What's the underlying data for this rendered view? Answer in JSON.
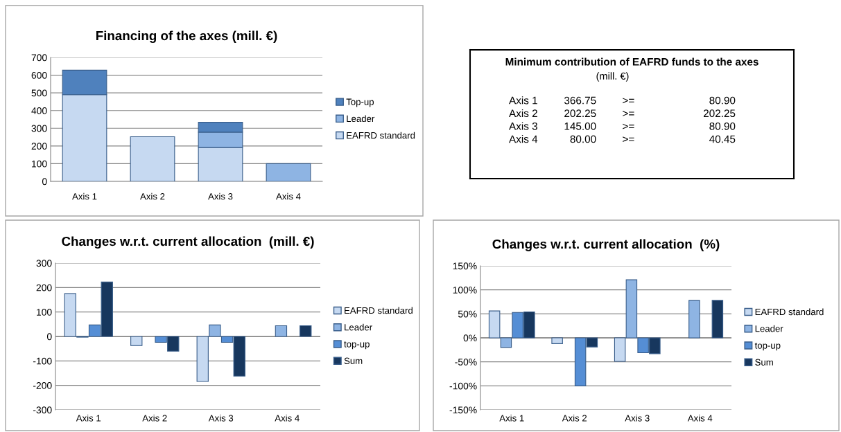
{
  "chart_data": [
    {
      "type": "bar",
      "title": "Financing of the axes (mill. €)",
      "categories": [
        "Axis 1",
        "Axis 2",
        "Axis 3",
        "Axis 4"
      ],
      "stacked": true,
      "ylim": [
        0,
        700
      ],
      "yticks": [
        0,
        100,
        200,
        300,
        400,
        500,
        600,
        700
      ],
      "grid": "y",
      "legend": "right",
      "series": [
        {
          "name": "EAFRD standard",
          "color": "#c6d9f1",
          "values": [
            490,
            252,
            192,
            null
          ]
        },
        {
          "name": "Leader",
          "color": "#8eb4e3",
          "values": [
            null,
            null,
            86,
            100
          ]
        },
        {
          "name": "Top-up",
          "color": "#4f81bd",
          "values": [
            138,
            null,
            56,
            null
          ]
        }
      ]
    },
    {
      "type": "other",
      "title": "Minimum contribution of EAFRD funds to the axes",
      "subtitle": "(mill. €)",
      "annotations": [
        "Axis 1",
        "366.75",
        ">=",
        "80.90",
        "Axis 2",
        "202.25",
        ">=",
        "202.25",
        "Axis 3",
        "145.00",
        ">=",
        "80.90",
        "Axis 4",
        "80.00",
        ">=",
        "40.45"
      ]
    },
    {
      "type": "bar",
      "title": "Changes w.r.t. current allocation  (mill. €)",
      "categories": [
        "Axis 1",
        "Axis 2",
        "Axis 3",
        "Axis 4"
      ],
      "ylim": [
        -300,
        300
      ],
      "yticks": [
        -300,
        -200,
        -100,
        0,
        100,
        200,
        300
      ],
      "grid": "y",
      "legend": "right",
      "series": [
        {
          "name": "EAFRD standard",
          "color": "#c6d9f1",
          "values": [
            175,
            -37,
            -184,
            null
          ]
        },
        {
          "name": "Leader",
          "color": "#8eb4e3",
          "values": [
            -3,
            null,
            47,
            44
          ]
        },
        {
          "name": "top-up",
          "color": "#558ed5",
          "values": [
            47,
            -24,
            -24,
            null
          ]
        },
        {
          "name": "Sum",
          "color": "#17375e",
          "values": [
            223,
            -60,
            -162,
            44
          ]
        }
      ]
    },
    {
      "type": "bar",
      "title": "Changes w.r.t. current allocation  (%)",
      "categories": [
        "Axis 1",
        "Axis 2",
        "Axis 3",
        "Axis 4"
      ],
      "ylim": [
        -150,
        150
      ],
      "yticks": [
        {
          "value": -150,
          "label": "-150%"
        },
        {
          "value": -100,
          "label": "-100%"
        },
        {
          "value": -50,
          "label": "-50%"
        },
        {
          "value": 0,
          "label": "0%"
        },
        {
          "value": 50,
          "label": "50%"
        },
        {
          "value": 100,
          "label": "100%"
        },
        {
          "value": 150,
          "label": "150%"
        }
      ],
      "grid": "y",
      "legend": "right",
      "series": [
        {
          "name": "EAFRD standard",
          "color": "#c6d9f1",
          "values": [
            56,
            -12,
            -49,
            null
          ]
        },
        {
          "name": "Leader",
          "color": "#8eb4e3",
          "values": [
            -20,
            null,
            121,
            78
          ]
        },
        {
          "name": "top-up",
          "color": "#558ed5",
          "values": [
            53,
            -100,
            -31,
            null
          ]
        },
        {
          "name": "Sum",
          "color": "#17375e",
          "values": [
            54,
            -19,
            -33,
            78
          ]
        }
      ]
    }
  ]
}
